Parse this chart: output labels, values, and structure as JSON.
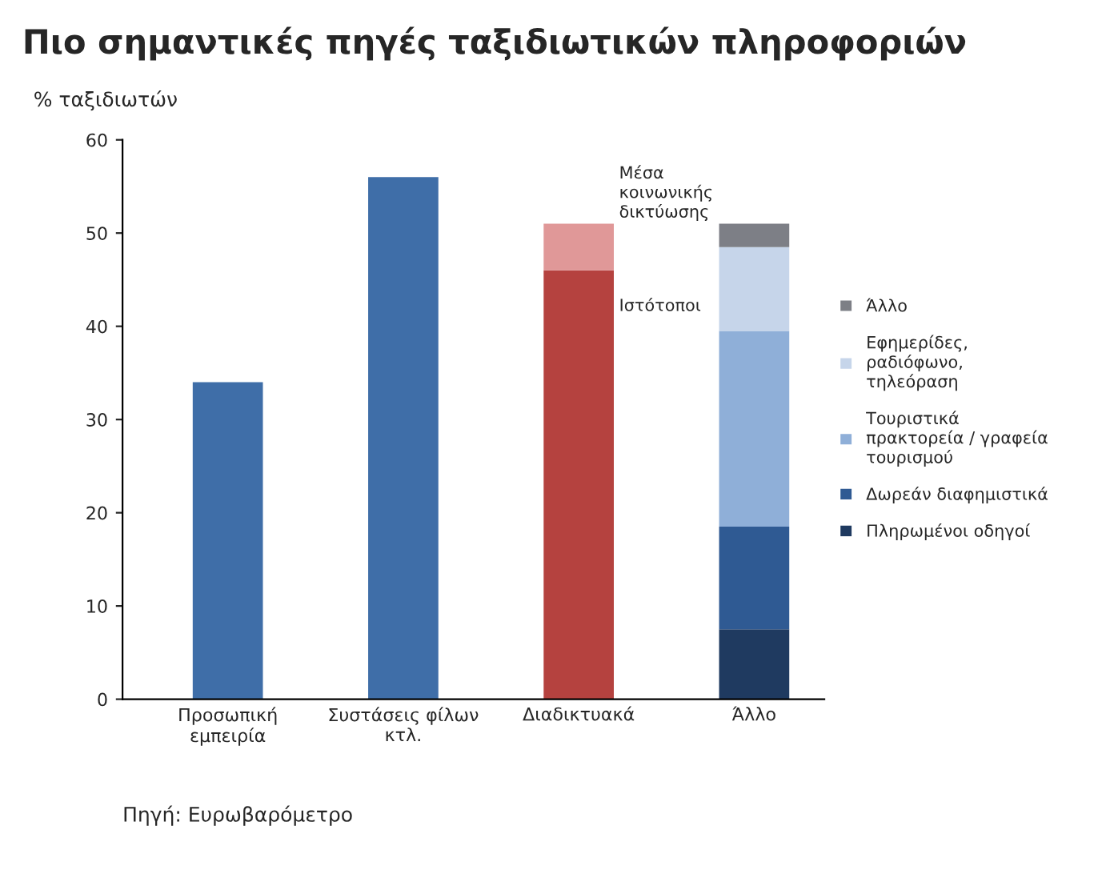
{
  "chart_data": {
    "type": "bar",
    "stacked": true,
    "title": "Πιο σημαντικές πηγές ταξιδιωτικών πληροφοριών",
    "ylabel": "% ταξιδιωτών",
    "categories": [
      "Προσωπική\nεμπειρία",
      "Συστάσεις φίλων\nκτλ.",
      "Διαδικτυακά",
      "Άλλο"
    ],
    "series": [
      {
        "color": "#3f6ea8",
        "values": [
          34,
          56,
          null,
          null
        ]
      },
      {
        "name": "Ιστότοποι",
        "color": "#b5423f",
        "values": [
          null,
          null,
          46,
          null
        ]
      },
      {
        "name": "Μέσα\nκοινωνικής\nδικτύωσης",
        "color": "#e09898",
        "values": [
          null,
          null,
          5,
          null
        ]
      },
      {
        "name": "Πληρωμένοι οδηγοί",
        "color": "#1f3a60",
        "values": [
          null,
          null,
          null,
          7.5
        ]
      },
      {
        "name": "Δωρεάν διαφημιστικά",
        "color": "#2f5a93",
        "values": [
          null,
          null,
          null,
          11
        ]
      },
      {
        "name": "Τουριστικά\nπρακτορεία / γραφεία\nτουρισμού",
        "color": "#8fafd8",
        "values": [
          null,
          null,
          null,
          21
        ]
      },
      {
        "name": "Εφημερίδες,\nραδιόφωνο,\nτηλεόραση",
        "color": "#c6d5ea",
        "values": [
          null,
          null,
          null,
          9
        ]
      },
      {
        "name": "Άλλο",
        "color": "#7d7f86",
        "values": [
          null,
          null,
          null,
          2.5
        ]
      }
    ],
    "ylim": [
      0,
      60
    ],
    "yticks": [
      0,
      10,
      20,
      30,
      40,
      50,
      60
    ],
    "legend": "right",
    "grid": false,
    "annotations": [
      "Πηγή: Ευρωβαρόμετρο"
    ]
  }
}
